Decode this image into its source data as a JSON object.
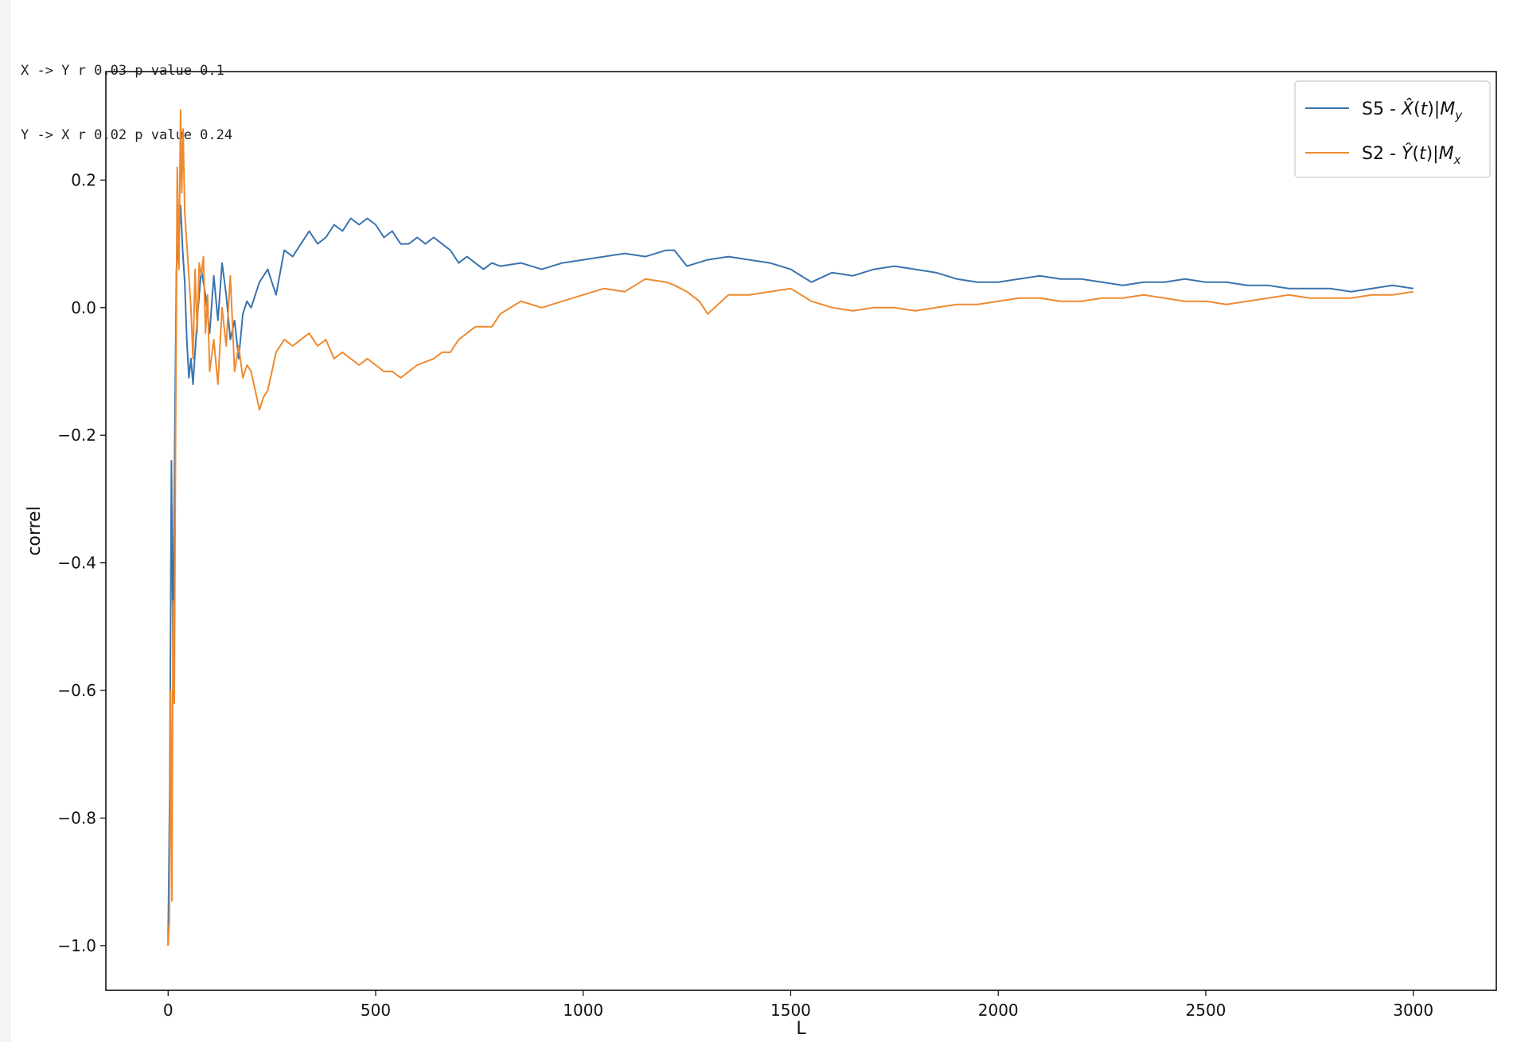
{
  "output_lines": [
    "X -> Y r 0.03 p value 0.1",
    "Y -> X r 0.02 p value 0.24"
  ],
  "chart_data": {
    "type": "line",
    "title": "",
    "xlabel": "L",
    "ylabel": "correl",
    "xlim": [
      -150,
      3200
    ],
    "ylim": [
      -1.07,
      0.37
    ],
    "x_ticks": [
      0,
      500,
      1000,
      1500,
      2000,
      2500,
      3000
    ],
    "x_tick_labels": [
      "0",
      "500",
      "1000",
      "1500",
      "2000",
      "2500",
      "3000"
    ],
    "y_ticks": [
      0.2,
      0.0,
      -0.2,
      -0.4,
      -0.6,
      -0.8,
      -1.0
    ],
    "y_tick_labels": [
      "0.2",
      "0.0",
      "−0.2",
      "−0.4",
      "−0.6",
      "−0.8",
      "−1.0"
    ],
    "grid": false,
    "legend_position": "top-right",
    "series": [
      {
        "name": "S5 - X̂(t)|M_y",
        "legend_parts": [
          "S5 - ",
          "X̂",
          "(",
          "t",
          ")|",
          "M",
          "y"
        ],
        "color": "#3b73af",
        "x": [
          0,
          4,
          8,
          12,
          16,
          20,
          25,
          30,
          35,
          40,
          45,
          50,
          55,
          60,
          70,
          80,
          90,
          100,
          110,
          120,
          130,
          140,
          150,
          160,
          170,
          180,
          190,
          200,
          220,
          240,
          260,
          280,
          300,
          320,
          340,
          360,
          380,
          400,
          420,
          440,
          460,
          480,
          500,
          520,
          540,
          560,
          580,
          600,
          620,
          640,
          660,
          680,
          700,
          720,
          740,
          760,
          780,
          800,
          850,
          900,
          950,
          1000,
          1050,
          1100,
          1150,
          1200,
          1220,
          1250,
          1300,
          1350,
          1400,
          1450,
          1500,
          1550,
          1600,
          1650,
          1700,
          1750,
          1800,
          1850,
          1900,
          1950,
          2000,
          2050,
          2100,
          2150,
          2200,
          2250,
          2300,
          2350,
          2400,
          2450,
          2500,
          2550,
          2600,
          2650,
          2700,
          2750,
          2800,
          2850,
          2900,
          2950,
          3000
        ],
        "y": [
          -1.0,
          -0.75,
          -0.24,
          -0.56,
          -0.2,
          0.06,
          0.1,
          0.16,
          0.09,
          0.04,
          -0.05,
          -0.11,
          -0.08,
          -0.12,
          -0.02,
          0.06,
          0.02,
          -0.04,
          0.05,
          -0.02,
          0.07,
          0.02,
          -0.05,
          -0.02,
          -0.08,
          -0.01,
          0.01,
          0.0,
          0.04,
          0.06,
          0.02,
          0.09,
          0.08,
          0.1,
          0.12,
          0.1,
          0.11,
          0.13,
          0.12,
          0.14,
          0.13,
          0.14,
          0.13,
          0.11,
          0.12,
          0.1,
          0.1,
          0.11,
          0.1,
          0.11,
          0.1,
          0.09,
          0.07,
          0.08,
          0.07,
          0.06,
          0.07,
          0.065,
          0.07,
          0.06,
          0.07,
          0.075,
          0.08,
          0.085,
          0.08,
          0.09,
          0.09,
          0.065,
          0.075,
          0.08,
          0.075,
          0.07,
          0.06,
          0.04,
          0.055,
          0.05,
          0.06,
          0.065,
          0.06,
          0.055,
          0.045,
          0.04,
          0.04,
          0.045,
          0.05,
          0.045,
          0.045,
          0.04,
          0.035,
          0.04,
          0.04,
          0.045,
          0.04,
          0.04,
          0.035,
          0.035,
          0.03,
          0.03,
          0.03,
          0.025,
          0.03,
          0.035,
          0.03
        ]
      },
      {
        "name": "S2 - Ŷ(t)|M_x",
        "legend_parts": [
          "S2 - ",
          "Ŷ",
          "(",
          "t",
          ")|",
          "M",
          "x"
        ],
        "color": "#ee8a30",
        "x": [
          0,
          3,
          6,
          9,
          12,
          15,
          18,
          22,
          26,
          30,
          33,
          36,
          40,
          45,
          50,
          55,
          60,
          65,
          70,
          75,
          80,
          85,
          90,
          95,
          100,
          110,
          120,
          130,
          140,
          150,
          160,
          170,
          180,
          190,
          200,
          210,
          220,
          230,
          240,
          250,
          260,
          280,
          300,
          320,
          340,
          360,
          380,
          400,
          420,
          440,
          460,
          480,
          500,
          520,
          540,
          560,
          580,
          600,
          620,
          640,
          660,
          680,
          700,
          720,
          740,
          760,
          780,
          800,
          850,
          900,
          950,
          1000,
          1050,
          1100,
          1150,
          1200,
          1220,
          1250,
          1280,
          1300,
          1350,
          1400,
          1450,
          1500,
          1550,
          1600,
          1650,
          1700,
          1750,
          1800,
          1850,
          1900,
          1950,
          2000,
          2050,
          2100,
          2150,
          2200,
          2250,
          2300,
          2350,
          2400,
          2450,
          2500,
          2550,
          2600,
          2650,
          2700,
          2750,
          2800,
          2850,
          2900,
          2950,
          3000
        ],
        "y": [
          -1.0,
          -0.96,
          -0.6,
          -0.93,
          -0.46,
          -0.62,
          -0.2,
          0.22,
          0.06,
          0.31,
          0.18,
          0.28,
          0.15,
          0.1,
          0.05,
          0.0,
          -0.08,
          0.06,
          -0.04,
          0.07,
          0.05,
          0.08,
          -0.04,
          0.02,
          -0.1,
          -0.05,
          -0.12,
          0.0,
          -0.06,
          0.05,
          -0.1,
          -0.06,
          -0.11,
          -0.09,
          -0.1,
          -0.13,
          -0.16,
          -0.14,
          -0.13,
          -0.1,
          -0.07,
          -0.05,
          -0.06,
          -0.05,
          -0.04,
          -0.06,
          -0.05,
          -0.08,
          -0.07,
          -0.08,
          -0.09,
          -0.08,
          -0.09,
          -0.1,
          -0.1,
          -0.11,
          -0.1,
          -0.09,
          -0.085,
          -0.08,
          -0.07,
          -0.07,
          -0.05,
          -0.04,
          -0.03,
          -0.03,
          -0.03,
          -0.01,
          0.01,
          0.0,
          0.01,
          0.02,
          0.03,
          0.025,
          0.045,
          0.04,
          0.035,
          0.025,
          0.01,
          -0.01,
          0.02,
          0.02,
          0.025,
          0.03,
          0.01,
          0.0,
          -0.005,
          0.0,
          0.0,
          -0.005,
          0.0,
          0.005,
          0.005,
          0.01,
          0.015,
          0.015,
          0.01,
          0.01,
          0.015,
          0.015,
          0.02,
          0.015,
          0.01,
          0.01,
          0.005,
          0.01,
          0.015,
          0.02,
          0.015,
          0.015,
          0.015,
          0.02,
          0.02,
          0.025
        ]
      }
    ]
  }
}
